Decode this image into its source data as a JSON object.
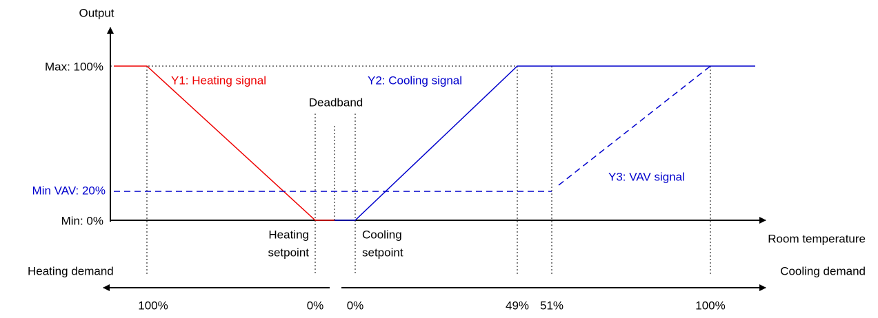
{
  "axes": {
    "y_label": "Output",
    "x_label": "Room temperature",
    "y_levels": {
      "max": "Max: 100%",
      "min_vav": "Min VAV: 20%",
      "min": "Min: 0%"
    }
  },
  "signals": {
    "heating": "Y1: Heating signal",
    "cooling": "Y2: Cooling signal",
    "vav": "Y3: VAV signal"
  },
  "deadband": "Deadband",
  "setpoints": {
    "heating": [
      "Heating",
      "setpoint"
    ],
    "cooling": [
      "Cooling",
      "setpoint"
    ]
  },
  "demand": {
    "heating": "Heating demand",
    "cooling": "Cooling demand",
    "heating_ticks": [
      "100%",
      "0%"
    ],
    "cooling_ticks": [
      "0%",
      "49%",
      "51%",
      "100%"
    ]
  }
}
